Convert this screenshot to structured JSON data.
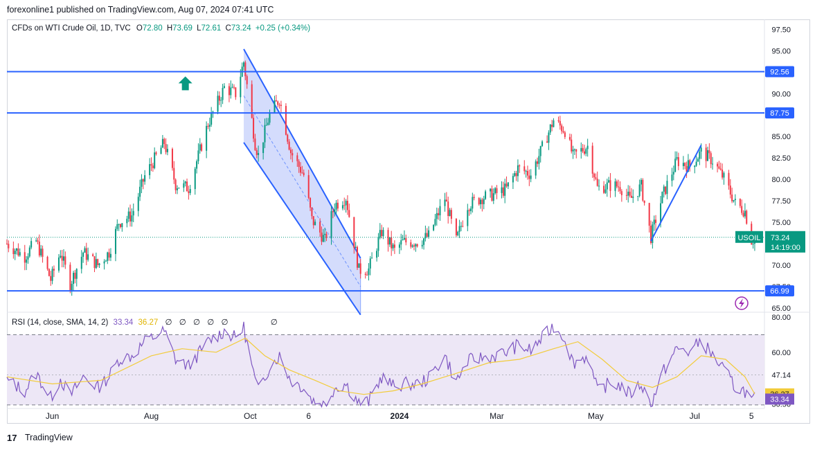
{
  "header": {
    "published": "forexonline1 published on TradingView.com, Aug 07, 2024 07:41 UTC"
  },
  "legend": {
    "symbol": "CFDs on WTI Crude Oil, 1D, TVC",
    "o_label": "O",
    "o_value": "72.80",
    "h_label": "H",
    "h_value": "73.69",
    "l_label": "L",
    "l_value": "72.61",
    "c_label": "C",
    "c_value": "73.24",
    "change": "+0.25 (+0.34%)"
  },
  "rsi_legend": {
    "title": "RSI (14, close, SMA, 14, 2)",
    "rsi_value": "33.34",
    "sma_value": "36.27",
    "glyphs": [
      "∅",
      "∅",
      "∅",
      "∅",
      "∅",
      "∅"
    ]
  },
  "footer": {
    "brand": "TradingView",
    "logo_text": "17"
  },
  "colors": {
    "up": "#089981",
    "down": "#f23645",
    "line": "#2962ff",
    "channel_fill": "#c5d0fb",
    "rsi": "#7e57c2",
    "sma": "#f2cc3b",
    "rsi_band": "#ede7f6"
  },
  "chart_data": [
    {
      "type": "candlestick",
      "title": "CFDs on WTI Crude Oil, 1D, TVC",
      "y_axis_ticks": [
        "97.50",
        "95.00",
        "90.00",
        "85.00",
        "82.50",
        "80.00",
        "77.50",
        "75.00",
        "70.00",
        "67.50",
        "65.00"
      ],
      "ylim": [
        64.5,
        98.5
      ],
      "x_axis_ticks": [
        "Jun",
        "Aug",
        "Oct",
        "6",
        "2024",
        "Mar",
        "May",
        "Jul",
        "5"
      ],
      "x_tick_dates": [
        "2023-06-01",
        "2023-08-01",
        "2023-10-01",
        "2023-11-06",
        "2024-01-01",
        "2024-03-01",
        "2024-05-01",
        "2024-07-01",
        "2024-08-05"
      ],
      "x_range": [
        "2023-05-04",
        "2024-08-13"
      ],
      "close_path": [
        [
          "2023-05-04",
          72.5
        ],
        [
          "2023-05-15",
          71.0
        ],
        [
          "2023-05-22",
          72.8
        ],
        [
          "2023-05-31",
          68.3
        ],
        [
          "2023-06-06",
          71.5
        ],
        [
          "2023-06-12",
          67.8
        ],
        [
          "2023-06-20",
          71.5
        ],
        [
          "2023-06-29",
          70.0
        ],
        [
          "2023-07-06",
          71.5
        ],
        [
          "2023-07-12",
          75.0
        ],
        [
          "2023-07-20",
          75.8
        ],
        [
          "2023-07-28",
          80.4
        ],
        [
          "2023-08-09",
          84.3
        ],
        [
          "2023-08-16",
          79.4
        ],
        [
          "2023-08-24",
          79.0
        ],
        [
          "2023-09-05",
          86.5
        ],
        [
          "2023-09-15",
          90.7
        ],
        [
          "2023-09-22",
          90.0
        ],
        [
          "2023-09-27",
          93.7
        ],
        [
          "2023-10-04",
          84.2
        ],
        [
          "2023-10-06",
          82.8
        ],
        [
          "2023-10-13",
          87.6
        ],
        [
          "2023-10-19",
          89.4
        ],
        [
          "2023-10-26",
          83.2
        ],
        [
          "2023-11-03",
          80.5
        ],
        [
          "2023-11-08",
          75.3
        ],
        [
          "2023-11-16",
          72.9
        ],
        [
          "2023-11-22",
          77.0
        ],
        [
          "2023-11-29",
          77.9
        ],
        [
          "2023-12-07",
          69.4
        ],
        [
          "2023-12-13",
          69.5
        ],
        [
          "2023-12-21",
          73.9
        ],
        [
          "2023-12-29",
          71.7
        ],
        [
          "2024-01-03",
          72.7
        ],
        [
          "2024-01-12",
          72.7
        ],
        [
          "2024-01-19",
          73.4
        ],
        [
          "2024-01-29",
          77.8
        ],
        [
          "2024-02-05",
          72.8
        ],
        [
          "2024-02-12",
          77.0
        ],
        [
          "2024-02-21",
          77.9
        ],
        [
          "2024-02-29",
          78.3
        ],
        [
          "2024-03-07",
          78.9
        ],
        [
          "2024-03-14",
          81.3
        ],
        [
          "2024-03-22",
          80.6
        ],
        [
          "2024-03-28",
          83.2
        ],
        [
          "2024-04-05",
          86.9
        ],
        [
          "2024-04-12",
          85.7
        ],
        [
          "2024-04-17",
          82.7
        ],
        [
          "2024-04-26",
          83.9
        ],
        [
          "2024-05-02",
          79.0
        ],
        [
          "2024-05-09",
          79.3
        ],
        [
          "2024-05-16",
          79.2
        ],
        [
          "2024-05-22",
          77.6
        ],
        [
          "2024-05-29",
          79.2
        ],
        [
          "2024-06-04",
          73.3
        ],
        [
          "2024-06-11",
          78.0
        ],
        [
          "2024-06-20",
          82.2
        ],
        [
          "2024-06-28",
          81.5
        ],
        [
          "2024-07-05",
          83.2
        ],
        [
          "2024-07-12",
          82.2
        ],
        [
          "2024-07-19",
          80.1
        ],
        [
          "2024-07-26",
          77.2
        ],
        [
          "2024-08-01",
          76.3
        ],
        [
          "2024-08-05",
          72.9
        ],
        [
          "2024-08-06",
          73.0
        ],
        [
          "2024-08-07",
          73.24
        ]
      ],
      "horizontal_levels": [
        92.56,
        87.75,
        66.99
      ],
      "level_labels": [
        "92.56",
        "87.75",
        "66.99"
      ],
      "descending_channel": {
        "upper": [
          [
            "2023-09-27",
            95.2
          ],
          [
            "2023-12-08",
            70.8
          ]
        ],
        "lower": [
          [
            "2023-09-27",
            84.3
          ],
          [
            "2023-12-08",
            64.2
          ]
        ]
      },
      "rising_trendline": [
        [
          "2024-06-04",
          72.8
        ],
        [
          "2024-07-05",
          84.0
        ]
      ],
      "current_price": {
        "symbol": "USOIL",
        "price": "73.24",
        "countdown": "14:19:00"
      },
      "annotation": "arrow-up marker near Aug 2023"
    },
    {
      "type": "line",
      "title": "RSI (14, close, SMA, 14, 2)",
      "y_axis_ticks": [
        "80.00",
        "60.00",
        "47.14",
        "30.56"
      ],
      "ylim": [
        28,
        82
      ],
      "bands": [
        30,
        70
      ],
      "band_mid": 47.14,
      "markers": [
        "36.27",
        "33.34"
      ],
      "rsi_path": [
        [
          "2023-05-04",
          44
        ],
        [
          "2023-05-15",
          38
        ],
        [
          "2023-05-22",
          48
        ],
        [
          "2023-05-31",
          34
        ],
        [
          "2023-06-06",
          45
        ],
        [
          "2023-06-12",
          35
        ],
        [
          "2023-06-20",
          46
        ],
        [
          "2023-06-29",
          40
        ],
        [
          "2023-07-06",
          46
        ],
        [
          "2023-07-12",
          56
        ],
        [
          "2023-07-20",
          58
        ],
        [
          "2023-07-28",
          66
        ],
        [
          "2023-08-09",
          72
        ],
        [
          "2023-08-16",
          56
        ],
        [
          "2023-08-24",
          52
        ],
        [
          "2023-09-05",
          66
        ],
        [
          "2023-09-15",
          72
        ],
        [
          "2023-09-22",
          68
        ],
        [
          "2023-09-27",
          74
        ],
        [
          "2023-10-04",
          44
        ],
        [
          "2023-10-06",
          38
        ],
        [
          "2023-10-13",
          52
        ],
        [
          "2023-10-19",
          58
        ],
        [
          "2023-10-26",
          44
        ],
        [
          "2023-11-03",
          40
        ],
        [
          "2023-11-08",
          33
        ],
        [
          "2023-11-16",
          30
        ],
        [
          "2023-11-22",
          40
        ],
        [
          "2023-11-29",
          42
        ],
        [
          "2023-12-07",
          31
        ],
        [
          "2023-12-13",
          32
        ],
        [
          "2023-12-21",
          46
        ],
        [
          "2023-12-29",
          40
        ],
        [
          "2024-01-03",
          42
        ],
        [
          "2024-01-12",
          42
        ],
        [
          "2024-01-19",
          45
        ],
        [
          "2024-01-29",
          58
        ],
        [
          "2024-02-05",
          43
        ],
        [
          "2024-02-12",
          55
        ],
        [
          "2024-02-21",
          57
        ],
        [
          "2024-02-29",
          58
        ],
        [
          "2024-03-07",
          60
        ],
        [
          "2024-03-14",
          64
        ],
        [
          "2024-03-22",
          61
        ],
        [
          "2024-03-28",
          67
        ],
        [
          "2024-04-05",
          75
        ],
        [
          "2024-04-12",
          68
        ],
        [
          "2024-04-17",
          54
        ],
        [
          "2024-04-26",
          58
        ],
        [
          "2024-05-02",
          38
        ],
        [
          "2024-05-09",
          42
        ],
        [
          "2024-05-16",
          41
        ],
        [
          "2024-05-22",
          36
        ],
        [
          "2024-05-29",
          42
        ],
        [
          "2024-06-04",
          30
        ],
        [
          "2024-06-11",
          48
        ],
        [
          "2024-06-20",
          62
        ],
        [
          "2024-06-28",
          60
        ],
        [
          "2024-07-05",
          67
        ],
        [
          "2024-07-12",
          58
        ],
        [
          "2024-07-19",
          50
        ],
        [
          "2024-07-26",
          40
        ],
        [
          "2024-08-01",
          38
        ],
        [
          "2024-08-05",
          32
        ],
        [
          "2024-08-06",
          33
        ],
        [
          "2024-08-07",
          33.34
        ]
      ],
      "sma_path": [
        [
          "2023-05-04",
          46
        ],
        [
          "2023-06-01",
          42
        ],
        [
          "2023-07-01",
          44
        ],
        [
          "2023-08-01",
          58
        ],
        [
          "2023-08-20",
          62
        ],
        [
          "2023-09-10",
          60
        ],
        [
          "2023-09-28",
          68
        ],
        [
          "2023-10-10",
          58
        ],
        [
          "2023-10-25",
          50
        ],
        [
          "2023-11-10",
          44
        ],
        [
          "2023-11-25",
          38
        ],
        [
          "2023-12-10",
          36
        ],
        [
          "2023-12-28",
          38
        ],
        [
          "2024-01-15",
          42
        ],
        [
          "2024-02-05",
          48
        ],
        [
          "2024-02-25",
          54
        ],
        [
          "2024-03-15",
          56
        ],
        [
          "2024-04-05",
          62
        ],
        [
          "2024-04-20",
          66
        ],
        [
          "2024-05-05",
          56
        ],
        [
          "2024-05-20",
          44
        ],
        [
          "2024-06-05",
          40
        ],
        [
          "2024-06-20",
          46
        ],
        [
          "2024-07-05",
          58
        ],
        [
          "2024-07-20",
          56
        ],
        [
          "2024-08-01",
          46
        ],
        [
          "2024-08-07",
          36.27
        ]
      ]
    }
  ]
}
